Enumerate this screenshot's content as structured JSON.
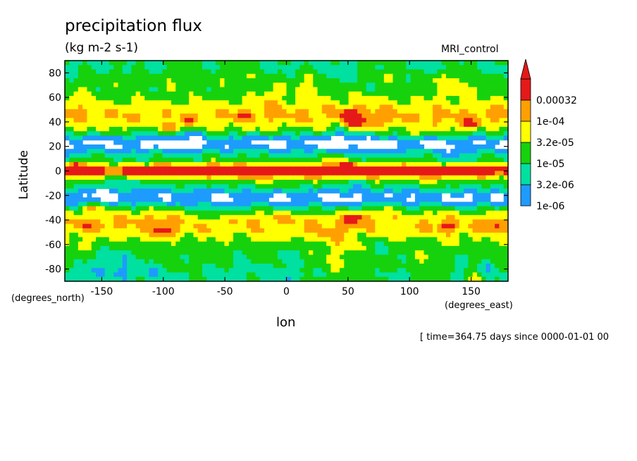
{
  "chart_data": {
    "type": "heatmap",
    "title": "precipitation flux",
    "subtitle": "(kg m-2 s-1)",
    "model_label": "MRI_control",
    "xlabel": "lon",
    "ylabel": "Latitude",
    "x_units_label": "(degrees_east)",
    "y_units_label": "(degrees_north)",
    "time_label": "[ time=364.75 days since 0000-01-01 00",
    "xlim": [
      -180,
      180
    ],
    "ylim": [
      -90,
      90
    ],
    "x_ticks": [
      -150,
      -100,
      -50,
      0,
      50,
      100,
      150
    ],
    "x_tick_labels": [
      "-150",
      "-100",
      "-50",
      "0",
      "50",
      "100",
      "150"
    ],
    "y_ticks": [
      -80,
      -60,
      -40,
      -20,
      0,
      20,
      40,
      60,
      80
    ],
    "y_tick_labels": [
      "-80",
      "-60",
      "-40",
      "-20",
      "0",
      "20",
      "40",
      "60",
      "80"
    ],
    "levels": [
      1e-06,
      3.2e-06,
      1e-05,
      3.2e-05,
      0.0001,
      0.00032
    ],
    "level_labels": [
      "1e-06",
      "3.2e-06",
      "1e-05",
      "3.2e-05",
      "1e-04",
      "0.00032"
    ],
    "colors": [
      "#1e9bff",
      "#00e0a0",
      "#16d20c",
      "#ffff00",
      "#ffa000",
      "#e61919"
    ],
    "background_color": "#ffffff",
    "features": [
      {
        "lon": -100,
        "lat": 2,
        "level": 5
      },
      {
        "lon": -120,
        "lat": 0,
        "level": 5
      },
      {
        "lon": -60,
        "lat": 1,
        "level": 5
      },
      {
        "lon": -40,
        "lat": 0,
        "level": 4
      },
      {
        "lon": 50,
        "lat": 3,
        "level": 5
      },
      {
        "lon": 65,
        "lat": 0,
        "level": 5
      },
      {
        "lon": 130,
        "lat": 0,
        "level": 5
      },
      {
        "lon": 155,
        "lat": 2,
        "level": 4
      },
      {
        "lon": -170,
        "lat": 3,
        "level": 5
      },
      {
        "lon": -95,
        "lat": 35,
        "level": 5
      },
      {
        "lon": -80,
        "lat": 40,
        "level": 4
      },
      {
        "lon": -35,
        "lat": 45,
        "level": 4
      },
      {
        "lon": 50,
        "lat": 45,
        "level": 5
      },
      {
        "lon": 55,
        "lat": 38,
        "level": 5
      },
      {
        "lon": 105,
        "lat": 30,
        "level": 4
      },
      {
        "lon": 150,
        "lat": 38,
        "level": 4
      },
      {
        "lon": -100,
        "lat": -50,
        "level": 4
      },
      {
        "lon": -160,
        "lat": -30,
        "level": 5
      },
      {
        "lon": -165,
        "lat": -45,
        "level": 4
      },
      {
        "lon": -10,
        "lat": -38,
        "level": 4
      },
      {
        "lon": 55,
        "lat": -38,
        "level": 5
      },
      {
        "lon": 130,
        "lat": -45,
        "level": 4
      },
      {
        "lon": 170,
        "lat": -45,
        "level": 4
      }
    ]
  }
}
